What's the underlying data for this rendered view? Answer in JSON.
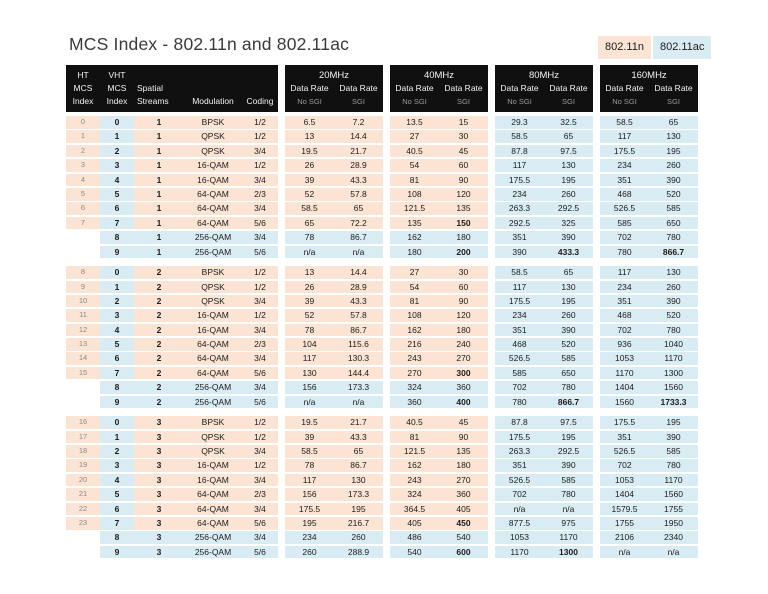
{
  "title": "MCS Index - 802.11n and 802.11ac",
  "legend": {
    "n_label": "802.11n",
    "ac_label": "802.11ac",
    "n_color": "#fbe4d3",
    "ac_color": "#d9ecf4"
  },
  "colors": {
    "peach": "#fbe4d3",
    "blue": "#d9ecf4",
    "header_bg": "#101010",
    "subtext_gray": "#9c9c9c"
  },
  "header": {
    "ht": [
      "HT",
      "MCS",
      "Index"
    ],
    "vht": [
      "VHT",
      "MCS",
      "Index"
    ],
    "spatial": [
      "Spatial",
      "Streams"
    ],
    "modulation": "Modulation",
    "coding": "Coding",
    "data_rate": "Data Rate",
    "no_sgi": "No SGI",
    "sgi": "SGI",
    "bands": [
      "20MHz",
      "40MHz",
      "80MHz",
      "160MHz"
    ]
  },
  "column_order": [
    "ht_mcs_index",
    "vht_mcs_index",
    "spatial_streams",
    "modulation",
    "coding",
    "rate_20_no_sgi",
    "rate_20_sgi",
    "rate_40_no_sgi",
    "rate_40_sgi",
    "rate_80_no_sgi",
    "rate_80_sgi",
    "rate_160_no_sgi",
    "rate_160_sgi"
  ],
  "groups": [
    {
      "rows": [
        {
          "v": [
            "0",
            "0",
            "1",
            "BPSK",
            "1/2",
            "6.5",
            "7.2",
            "13.5",
            "15",
            "29.3",
            "32.5",
            "58.5",
            "65"
          ],
          "b": []
        },
        {
          "v": [
            "1",
            "1",
            "1",
            "QPSK",
            "1/2",
            "13",
            "14.4",
            "27",
            "30",
            "58.5",
            "65",
            "117",
            "130"
          ],
          "b": []
        },
        {
          "v": [
            "2",
            "2",
            "1",
            "QPSK",
            "3/4",
            "19.5",
            "21.7",
            "40.5",
            "45",
            "87.8",
            "97.5",
            "175.5",
            "195"
          ],
          "b": []
        },
        {
          "v": [
            "3",
            "3",
            "1",
            "16-QAM",
            "1/2",
            "26",
            "28.9",
            "54",
            "60",
            "117",
            "130",
            "234",
            "260"
          ],
          "b": []
        },
        {
          "v": [
            "4",
            "4",
            "1",
            "16-QAM",
            "3/4",
            "39",
            "43.3",
            "81",
            "90",
            "175.5",
            "195",
            "351",
            "390"
          ],
          "b": []
        },
        {
          "v": [
            "5",
            "5",
            "1",
            "64-QAM",
            "2/3",
            "52",
            "57.8",
            "108",
            "120",
            "234",
            "260",
            "468",
            "520"
          ],
          "b": []
        },
        {
          "v": [
            "6",
            "6",
            "1",
            "64-QAM",
            "3/4",
            "58.5",
            "65",
            "121.5",
            "135",
            "263.3",
            "292.5",
            "526.5",
            "585"
          ],
          "b": []
        },
        {
          "v": [
            "7",
            "7",
            "1",
            "64-QAM",
            "5/6",
            "65",
            "72.2",
            "135",
            "150",
            "292.5",
            "325",
            "585",
            "650"
          ],
          "b": [
            8
          ]
        },
        {
          "v": [
            "",
            "8",
            "1",
            "256-QAM",
            "3/4",
            "78",
            "86.7",
            "162",
            "180",
            "351",
            "390",
            "702",
            "780"
          ],
          "b": []
        },
        {
          "v": [
            "",
            "9",
            "1",
            "256-QAM",
            "5/6",
            "n/a",
            "n/a",
            "180",
            "200",
            "390",
            "433.3",
            "780",
            "866.7"
          ],
          "b": [
            8,
            10,
            12
          ]
        }
      ]
    },
    {
      "rows": [
        {
          "v": [
            "8",
            "0",
            "2",
            "BPSK",
            "1/2",
            "13",
            "14.4",
            "27",
            "30",
            "58.5",
            "65",
            "117",
            "130"
          ],
          "b": []
        },
        {
          "v": [
            "9",
            "1",
            "2",
            "QPSK",
            "1/2",
            "26",
            "28.9",
            "54",
            "60",
            "117",
            "130",
            "234",
            "260"
          ],
          "b": []
        },
        {
          "v": [
            "10",
            "2",
            "2",
            "QPSK",
            "3/4",
            "39",
            "43.3",
            "81",
            "90",
            "175.5",
            "195",
            "351",
            "390"
          ],
          "b": []
        },
        {
          "v": [
            "11",
            "3",
            "2",
            "16-QAM",
            "1/2",
            "52",
            "57.8",
            "108",
            "120",
            "234",
            "260",
            "468",
            "520"
          ],
          "b": []
        },
        {
          "v": [
            "12",
            "4",
            "2",
            "16-QAM",
            "3/4",
            "78",
            "86.7",
            "162",
            "180",
            "351",
            "390",
            "702",
            "780"
          ],
          "b": []
        },
        {
          "v": [
            "13",
            "5",
            "2",
            "64-QAM",
            "2/3",
            "104",
            "115.6",
            "216",
            "240",
            "468",
            "520",
            "936",
            "1040"
          ],
          "b": []
        },
        {
          "v": [
            "14",
            "6",
            "2",
            "64-QAM",
            "3/4",
            "117",
            "130.3",
            "243",
            "270",
            "526.5",
            "585",
            "1053",
            "1170"
          ],
          "b": []
        },
        {
          "v": [
            "15",
            "7",
            "2",
            "64-QAM",
            "5/6",
            "130",
            "144.4",
            "270",
            "300",
            "585",
            "650",
            "1170",
            "1300"
          ],
          "b": [
            8
          ]
        },
        {
          "v": [
            "",
            "8",
            "2",
            "256-QAM",
            "3/4",
            "156",
            "173.3",
            "324",
            "360",
            "702",
            "780",
            "1404",
            "1560"
          ],
          "b": []
        },
        {
          "v": [
            "",
            "9",
            "2",
            "256-QAM",
            "5/6",
            "n/a",
            "n/a",
            "360",
            "400",
            "780",
            "866.7",
            "1560",
            "1733.3"
          ],
          "b": [
            8,
            10,
            12
          ]
        }
      ]
    },
    {
      "rows": [
        {
          "v": [
            "16",
            "0",
            "3",
            "BPSK",
            "1/2",
            "19.5",
            "21.7",
            "40.5",
            "45",
            "87.8",
            "97.5",
            "175.5",
            "195"
          ],
          "b": []
        },
        {
          "v": [
            "17",
            "1",
            "3",
            "QPSK",
            "1/2",
            "39",
            "43.3",
            "81",
            "90",
            "175.5",
            "195",
            "351",
            "390"
          ],
          "b": []
        },
        {
          "v": [
            "18",
            "2",
            "3",
            "QPSK",
            "3/4",
            "58.5",
            "65",
            "121.5",
            "135",
            "263.3",
            "292.5",
            "526.5",
            "585"
          ],
          "b": []
        },
        {
          "v": [
            "19",
            "3",
            "3",
            "16-QAM",
            "1/2",
            "78",
            "86.7",
            "162",
            "180",
            "351",
            "390",
            "702",
            "780"
          ],
          "b": []
        },
        {
          "v": [
            "20",
            "4",
            "3",
            "16-QAM",
            "3/4",
            "117",
            "130",
            "243",
            "270",
            "526.5",
            "585",
            "1053",
            "1170"
          ],
          "b": []
        },
        {
          "v": [
            "21",
            "5",
            "3",
            "64-QAM",
            "2/3",
            "156",
            "173.3",
            "324",
            "360",
            "702",
            "780",
            "1404",
            "1560"
          ],
          "b": []
        },
        {
          "v": [
            "22",
            "6",
            "3",
            "64-QAM",
            "3/4",
            "175.5",
            "195",
            "364.5",
            "405",
            "n/a",
            "n/a",
            "1579.5",
            "1755"
          ],
          "b": []
        },
        {
          "v": [
            "23",
            "7",
            "3",
            "64-QAM",
            "5/6",
            "195",
            "216.7",
            "405",
            "450",
            "877.5",
            "975",
            "1755",
            "1950"
          ],
          "b": [
            8
          ]
        },
        {
          "v": [
            "",
            "8",
            "3",
            "256-QAM",
            "3/4",
            "234",
            "260",
            "486",
            "540",
            "1053",
            "1170",
            "2106",
            "2340"
          ],
          "b": []
        },
        {
          "v": [
            "",
            "9",
            "3",
            "256-QAM",
            "5/6",
            "260",
            "288.9",
            "540",
            "600",
            "1170",
            "1300",
            "n/a",
            "n/a"
          ],
          "b": [
            8,
            10
          ]
        }
      ]
    }
  ]
}
